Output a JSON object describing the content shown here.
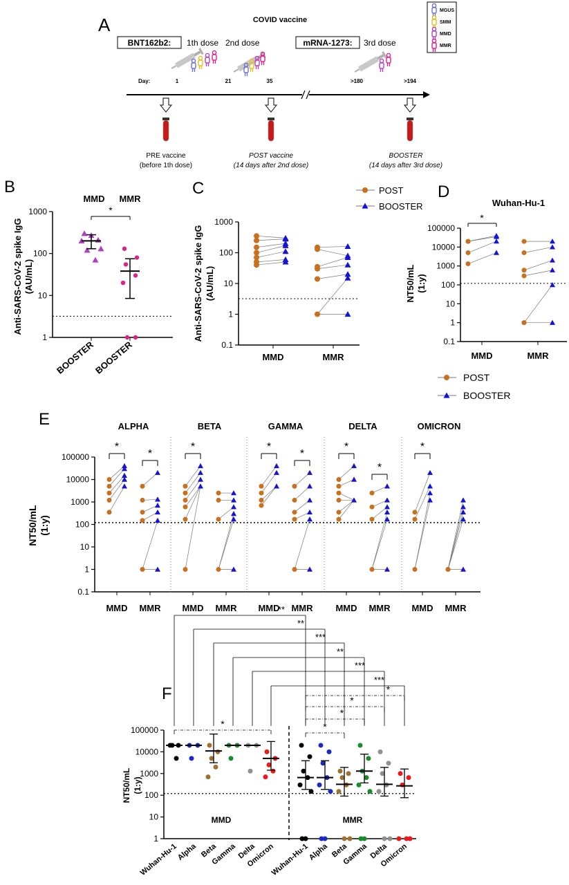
{
  "colors": {
    "post": "#c8701e",
    "booster": "#1414d2",
    "mgus": "#7070d0",
    "smm": "#e0c020",
    "mmd": "#b040c0",
    "mmr": "#e0208a",
    "f_wuhan": "#000000",
    "f_alpha": "#1a2ac0",
    "f_beta": "#a07030",
    "f_gamma": "#1a8a2a",
    "f_delta": "#909090",
    "f_omicron": "#e81a1a"
  },
  "panelA": {
    "letter": "A",
    "title": "COVID vaccine",
    "bnt_label": "BNT162b2:",
    "mrna_label": "mRNA-1273:",
    "dose1": "1th dose",
    "dose2": "2nd dose",
    "dose3": "3rd dose",
    "day_label": "Day:",
    "days": [
      "1",
      "21",
      "35",
      ">180",
      ">194"
    ],
    "legend": [
      "MGUS",
      "SMM",
      "MMD",
      "MMR"
    ],
    "samples": [
      {
        "title": "PRE vaccine",
        "sub": "(before 1th dose)"
      },
      {
        "title": "POST vaccine",
        "sub": "(14 days after 2nd dose)"
      },
      {
        "title": "BOOSTER",
        "sub": "(14 days after 3rd dose)"
      }
    ]
  },
  "panelB": {
    "letter": "B",
    "ylabel": "Anti-SARS-CoV-2 spike IgG",
    "yunit": "(AU/mL)",
    "groups": [
      "MMD",
      "MMR"
    ],
    "xlabels": [
      "BOOSTER",
      "BOOSTER"
    ],
    "sig": "*",
    "yticks": [
      "1",
      "10",
      "100",
      "1000"
    ]
  },
  "panelC": {
    "letter": "C",
    "ylabel": "Anti-SARS-CoV-2 spike IgG",
    "yunit": "(AU/mL)",
    "xlabels": [
      "MMD",
      "MMR"
    ],
    "legend": [
      "POST",
      "BOOSTER"
    ],
    "yticks": [
      "0.1",
      "1",
      "10",
      "100",
      "1000"
    ]
  },
  "panelD": {
    "letter": "D",
    "title": "Wuhan-Hu-1",
    "ylabel": "NT50/mL",
    "yunit": "(1:y)",
    "xlabels": [
      "MMD",
      "MMR"
    ],
    "sig": "*",
    "legend": [
      "POST",
      "BOOSTER"
    ],
    "yticks": [
      "0.1",
      "1",
      "10",
      "100",
      "1000",
      "10000",
      "100000"
    ]
  },
  "panelE": {
    "letter": "E",
    "ylabel": "NT50/mL",
    "yunit": "(1:y)",
    "variants": [
      "ALPHA",
      "BETA",
      "GAMMA",
      "DELTA",
      "OMICRON"
    ],
    "xlabels": [
      "MMD",
      "MMR"
    ],
    "sig": "*",
    "yticks": [
      "0.1",
      "1",
      "10",
      "100",
      "1000",
      "10000",
      "100000"
    ]
  },
  "panelF": {
    "letter": "F",
    "ylabel": "NT50/mL",
    "yunit": "(1:y)",
    "group_labels": [
      "MMD",
      "MMR"
    ],
    "xlabels": [
      "Wuhan-Hu-1",
      "Alpha",
      "Beta",
      "Gamma",
      "Delta",
      "Omicron",
      "Wuhan-Hu-1",
      "Alpha",
      "Beta",
      "Gamma",
      "Delta",
      "Omicron"
    ],
    "yticks": [
      "1",
      "10",
      "100",
      "1000",
      "10000",
      "100000"
    ],
    "brackets": [
      "**",
      "**",
      "***",
      "**",
      "***",
      "***"
    ],
    "dash_brackets": [
      "*",
      "*",
      "*",
      "*"
    ]
  },
  "chart_data": [
    {
      "panel": "B",
      "type": "scatter",
      "scale": "log",
      "ylim": [
        1,
        1000
      ],
      "categories": [
        "MMD",
        "MMR"
      ],
      "series": [
        {
          "name": "MMD",
          "values": [
            300,
            270,
            210,
            200,
            130,
            120,
            70
          ]
        },
        {
          "name": "MMR",
          "values": [
            130,
            80,
            55,
            30,
            20,
            1,
            1
          ]
        }
      ],
      "summary": {
        "MMD": {
          "median": 200,
          "q1": 130,
          "q3": 280
        },
        "MMR": {
          "median": 38,
          "q1": 8.5,
          "q3": 75
        }
      },
      "threshold": 3.2
    },
    {
      "panel": "C",
      "type": "line",
      "scale": "log",
      "ylim": [
        0.1,
        1000
      ],
      "categories": [
        "MMD",
        "MMR"
      ],
      "series": [
        {
          "name": "POST",
          "MMD": [
            350,
            250,
            150,
            100,
            70,
            50,
            40
          ],
          "MMR": [
            150,
            130,
            35,
            30,
            14,
            1
          ]
        },
        {
          "name": "BOOSTER",
          "MMD": [
            300,
            280,
            200,
            170,
            110,
            60,
            50
          ],
          "MMR": [
            160,
            80,
            70,
            40,
            20,
            15,
            1
          ]
        }
      ],
      "threshold": 3.2
    },
    {
      "panel": "D",
      "type": "line",
      "scale": "log",
      "ylim": [
        0.1,
        100000
      ],
      "title": "Wuhan-Hu-1",
      "categories": [
        "MMD",
        "MMR"
      ],
      "series": [
        {
          "name": "POST",
          "MMD": [
            20000,
            20000,
            5000,
            1300
          ],
          "MMR": [
            20000,
            5000,
            600,
            300,
            1,
            1
          ]
        },
        {
          "name": "BOOSTER",
          "MMD": [
            40000,
            35000,
            20000,
            5000
          ],
          "MMR": [
            20000,
            10000,
            2000,
            600,
            100,
            1
          ]
        }
      ],
      "threshold": 120
    },
    {
      "panel": "E",
      "type": "line",
      "scale": "log",
      "ylim": [
        0.1,
        100000
      ],
      "variants": [
        {
          "name": "ALPHA",
          "MMD_post": [
            10000,
            5000,
            2500,
            1200,
            350
          ],
          "MMD_booster": [
            40000,
            30000,
            15000,
            10000,
            5000
          ],
          "MMR_post": [
            5000,
            1200,
            350,
            150,
            1
          ],
          "MMR_booster": [
            20000,
            1300,
            700,
            350,
            150,
            1
          ]
        },
        {
          "name": "BETA",
          "MMD_post": [
            5000,
            2500,
            1200,
            600,
            170,
            1
          ],
          "MMD_booster": [
            40000,
            20000,
            10000,
            5000
          ],
          "MMR_post": [
            2500,
            1200,
            170,
            1
          ],
          "MMR_booster": [
            2500,
            1200,
            600,
            300,
            170,
            1
          ]
        },
        {
          "name": "GAMMA",
          "MMD_post": [
            5000,
            2500,
            1200,
            700
          ],
          "MMD_booster": [
            40000,
            20000,
            5000
          ],
          "MMR_post": [
            5000,
            1200,
            350,
            170,
            1
          ],
          "MMR_booster": [
            20000,
            5000,
            1200,
            350,
            170,
            1
          ]
        },
        {
          "name": "DELTA",
          "MMD_post": [
            10000,
            5000,
            2500,
            1200,
            350,
            170
          ],
          "MMD_booster": [
            40000,
            10000,
            1200
          ],
          "MMR_post": [
            2500,
            600,
            170,
            1
          ],
          "MMR_booster": [
            5000,
            1200,
            600,
            350,
            170,
            1
          ]
        },
        {
          "name": "OMICRON",
          "MMD_post": [
            350,
            170,
            1
          ],
          "MMD_booster": [
            20000,
            5000,
            2500,
            1200
          ],
          "MMR_post": [
            1,
            1
          ],
          "MMR_booster": [
            1200,
            600,
            350,
            170,
            1
          ]
        }
      ],
      "threshold": 120
    },
    {
      "panel": "F",
      "type": "scatter",
      "scale": "log",
      "ylim": [
        1,
        100000
      ],
      "categories": [
        "Wuhan-Hu-1",
        "Alpha",
        "Beta",
        "Gamma",
        "Delta",
        "Omicron",
        "Wuhan-Hu-1",
        "Alpha",
        "Beta",
        "Gamma",
        "Delta",
        "Omicron"
      ],
      "medians": [
        20000,
        20000,
        11000,
        20000,
        20000,
        5000,
        650,
        650,
        320,
        1300,
        320,
        270
      ],
      "threshold": 120
    }
  ]
}
